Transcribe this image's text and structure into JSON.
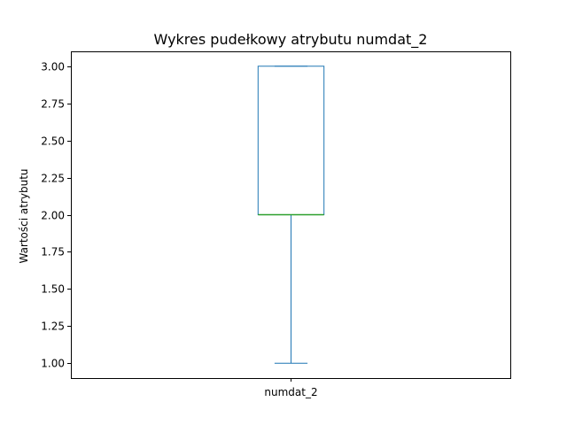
{
  "chart_data": {
    "type": "box",
    "title": "Wykres pudełkowy atrybutu numdat_2",
    "xlabel": "",
    "ylabel": "Wartości atrybutu",
    "categories": [
      "numdat_2"
    ],
    "boxes": [
      {
        "category": "numdat_2",
        "whisker_low": 1.0,
        "q1": 2.0,
        "median": 2.0,
        "q3": 3.0,
        "whisker_high": 3.0
      }
    ],
    "ylim": [
      0.9,
      3.1
    ],
    "yticks": [
      1.0,
      1.25,
      1.5,
      1.75,
      2.0,
      2.25,
      2.5,
      2.75,
      3.0
    ],
    "ytick_labels": [
      "1.00",
      "1.25",
      "1.50",
      "1.75",
      "2.00",
      "2.25",
      "2.50",
      "2.75",
      "3.00"
    ],
    "grid": false,
    "colors": {
      "box": "#1f77b4",
      "median": "#2ca02c",
      "axes": "#000000"
    }
  }
}
